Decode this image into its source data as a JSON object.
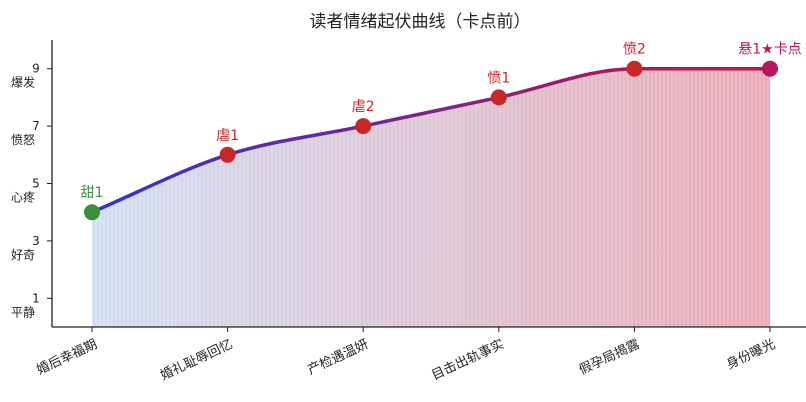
{
  "chart_data": {
    "type": "line",
    "title": "读者情绪起伏曲线（卡点前）",
    "xlabel": "",
    "ylabel": "",
    "categories": [
      "婚后幸福期",
      "婚礼耻辱回忆",
      "产检遇温妍",
      "目击出轨事实",
      "假孕局揭露",
      "身份曝光"
    ],
    "values": [
      4,
      6,
      7,
      8,
      9,
      9
    ],
    "point_labels": [
      "甜1",
      "虐1",
      "虐2",
      "愤1",
      "愤2",
      "悬1★卡点"
    ],
    "point_colors": [
      "#3a8f3e",
      "#c62828",
      "#c62828",
      "#c62828",
      "#c62828",
      "#b5175c"
    ],
    "label_colors": [
      "#3a8f3e",
      "#c62828",
      "#c62828",
      "#c62828",
      "#c62828",
      "#b5175c"
    ],
    "yticks": [
      1,
      3,
      5,
      7,
      9
    ],
    "ytick_labels": [
      "平静",
      "好奇",
      "心疼",
      "愤怒",
      "爆发"
    ],
    "ylim": [
      0,
      10
    ],
    "line_gradient": [
      "#3333cc",
      "#cc1144"
    ],
    "fill_gradient": [
      "#c9d8f0",
      "#e59aa8"
    ],
    "grid": false,
    "legend": "none"
  }
}
